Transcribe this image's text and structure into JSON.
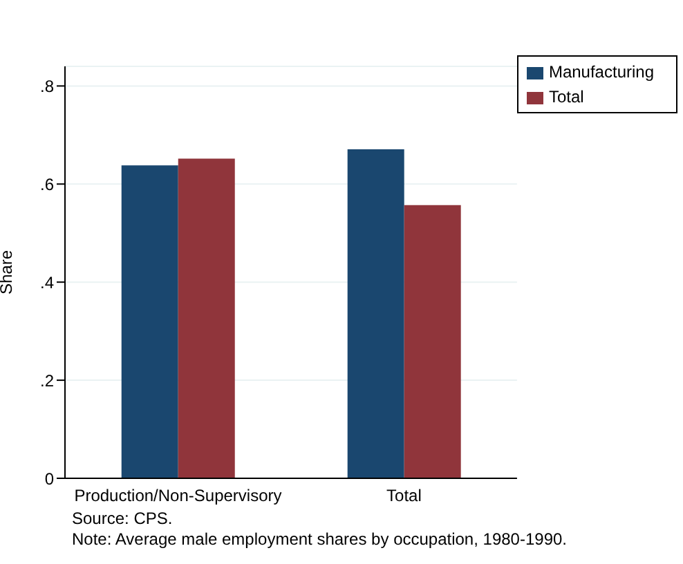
{
  "chart_data": {
    "type": "bar",
    "ylabel": "Share",
    "categories": [
      "Production/Non-Supervisory",
      "Total"
    ],
    "series": [
      {
        "name": "Manufacturing",
        "color": "#1a476f",
        "values": [
          0.638,
          0.671
        ]
      },
      {
        "name": "Total",
        "color": "#90353b",
        "values": [
          0.652,
          0.557
        ]
      }
    ],
    "ylim": [
      0,
      0.84
    ],
    "yticks": [
      0,
      {
        "value": 0.2,
        "label": ".2"
      },
      {
        "value": 0.4,
        "label": ".4"
      },
      {
        "value": 0.6,
        "label": ".6"
      },
      {
        "value": 0.8,
        "label": ".8"
      }
    ],
    "grid": "y",
    "legend": "top right",
    "annotations": [
      "Source: CPS.",
      "Note: Average male employment shares by occupation, 1980-1990."
    ]
  }
}
